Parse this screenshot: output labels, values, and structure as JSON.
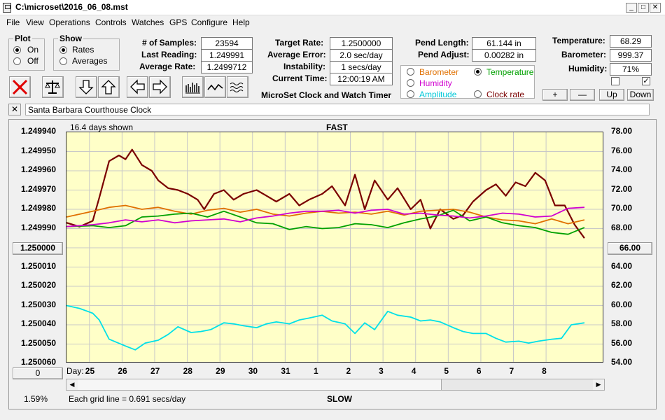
{
  "window": {
    "title": "C:\\microset\\2016_06_08.mst"
  },
  "menu": [
    "File",
    "View",
    "Operations",
    "Controls",
    "Watches",
    "GPS",
    "Configure",
    "Help"
  ],
  "plot_group": {
    "title": "Plot",
    "on": "On",
    "off": "Off",
    "selected": "On"
  },
  "show_group": {
    "title": "Show",
    "rates": "Rates",
    "averages": "Averages",
    "selected": "Rates"
  },
  "stats": {
    "samples_label": "# of Samples:",
    "samples": "23594",
    "last_label": "Last Reading:",
    "last": "1.249991",
    "avg_label": "Average Rate:",
    "avg": "1.2499712",
    "target_label": "Target Rate:",
    "target": "1.2500000",
    "err_label": "Average Error:",
    "err": "2.0 sec/day",
    "inst_label": "Instability:",
    "inst": "1 secs/day",
    "time_label": "Current Time:",
    "time": "12:00:19 AM",
    "pend_len_label": "Pend Length:",
    "pend_len": "61.144 in",
    "pend_adj_label": "Pend Adjust:",
    "pend_adj": "0.00282 in",
    "temp_label": "Temperature:",
    "temp": "68.29",
    "baro_label": "Barometer:",
    "baro": "999.37",
    "hum_label": "Humidity:",
    "hum": "71%",
    "app_name": "MicroSet Clock and Watch Timer"
  },
  "sensor_options": [
    {
      "label": "Barometer",
      "color": "#e07000",
      "selected": false
    },
    {
      "label": "Temperature",
      "color": "#00a000",
      "selected": true
    },
    {
      "label": "Humidity",
      "color": "#d000d0",
      "selected": false
    },
    {
      "label": "Clock rate",
      "color": "#7a0000",
      "selected": false
    },
    {
      "label": "Amplitude",
      "color": "#00c8d8",
      "selected": false
    }
  ],
  "adjust_buttons": {
    "plus": "+",
    "minus": "—",
    "up": "Up",
    "down": "Down"
  },
  "checkboxes": {
    "left": "",
    "right": "✓"
  },
  "watch_name": "Santa Barbara Courthouse Clock",
  "graph": {
    "days_shown": "16.4 days shown",
    "top_label": "FAST",
    "bottom_label": "SLOW",
    "left_value_button": "1.250000",
    "right_value_button": "66.00",
    "zero_button": "0",
    "percent": "1.59%",
    "grid_note": "Each grid line = 0.691 secs/day",
    "day_label": "Day:"
  },
  "chart_data": {
    "type": "line",
    "title": "",
    "y_left": {
      "ticks": [
        "1.249940",
        "1.249950",
        "1.249960",
        "1.249970",
        "1.249980",
        "1.249990",
        "1.250000",
        "1.250010",
        "1.250020",
        "1.250030",
        "1.250040",
        "1.250050",
        "1.250060"
      ],
      "range": [
        1.24994,
        1.25006
      ],
      "inverted": true
    },
    "y_right": {
      "ticks": [
        "78.00",
        "76.00",
        "74.00",
        "72.00",
        "70.00",
        "68.00",
        "66.00",
        "64.00",
        "62.00",
        "60.00",
        "58.00",
        "56.00",
        "54.00"
      ],
      "range": [
        54,
        78
      ]
    },
    "x_days": [
      "25",
      "26",
      "27",
      "28",
      "29",
      "30",
      "31",
      "1",
      "2",
      "3",
      "4",
      "5",
      "6",
      "7",
      "8"
    ],
    "x_range": [
      24.2,
      40.6
    ],
    "grid": true,
    "series": [
      {
        "color": "#7a0000",
        "x": [
          24.2,
          24.6,
          25.0,
          25.2,
          25.5,
          25.8,
          26.0,
          26.2,
          26.5,
          26.8,
          27.0,
          27.3,
          27.6,
          27.9,
          28.2,
          28.4,
          28.7,
          29.0,
          29.3,
          29.6,
          30.0,
          30.3,
          30.6,
          31.0,
          31.3,
          31.6,
          32.0,
          32.3,
          32.7,
          33.0,
          33.3,
          33.6,
          34.0,
          34.3,
          34.7,
          35.0,
          35.3,
          35.6,
          36.0,
          36.3,
          36.6,
          37.0,
          37.3,
          37.6,
          37.9,
          38.2,
          38.5,
          38.8,
          39.1,
          39.4,
          39.7,
          40.0
        ],
        "y": [
          1.249987,
          1.249989,
          1.249986,
          1.249974,
          1.249955,
          1.249952,
          1.249954,
          1.249949,
          1.249957,
          1.24996,
          1.249965,
          1.249969,
          1.24997,
          1.249972,
          1.249975,
          1.24998,
          1.249972,
          1.24997,
          1.249975,
          1.249972,
          1.24997,
          1.249973,
          1.249976,
          1.249972,
          1.249978,
          1.249975,
          1.249972,
          1.249968,
          1.249978,
          1.249962,
          1.24998,
          1.249965,
          1.249975,
          1.249969,
          1.24998,
          1.249975,
          1.24999,
          1.24998,
          1.249985,
          1.249983,
          1.249976,
          1.24997,
          1.249967,
          1.249973,
          1.249966,
          1.249968,
          1.249961,
          1.249965,
          1.249978,
          1.249978,
          1.249988,
          1.249995
        ]
      },
      {
        "color": "#e07000",
        "x": [
          24.2,
          25.0,
          25.5,
          26.0,
          26.5,
          27.0,
          27.5,
          28.0,
          28.5,
          29.0,
          29.5,
          30.0,
          30.5,
          31.0,
          31.5,
          32.0,
          32.5,
          33.0,
          33.5,
          34.0,
          34.5,
          35.0,
          35.5,
          36.0,
          36.5,
          37.0,
          37.5,
          38.0,
          38.5,
          39.0,
          39.5,
          40.0
        ],
        "y": [
          69.2,
          69.8,
          70.2,
          70.4,
          70.0,
          70.2,
          69.8,
          69.5,
          69.9,
          70.1,
          69.7,
          70.0,
          69.5,
          69.3,
          69.6,
          69.8,
          69.6,
          69.7,
          69.5,
          69.8,
          69.4,
          69.8,
          69.9,
          70.0,
          69.7,
          69.2,
          68.9,
          68.8,
          68.5,
          69.0,
          68.5,
          68.9
        ]
      },
      {
        "color": "#00a000",
        "x": [
          24.2,
          25.0,
          25.5,
          26.0,
          26.5,
          27.0,
          27.5,
          28.0,
          28.5,
          29.0,
          29.5,
          30.0,
          30.5,
          31.0,
          31.5,
          32.0,
          32.5,
          33.0,
          33.5,
          34.0,
          34.5,
          35.0,
          35.5,
          36.0,
          36.5,
          37.0,
          37.5,
          38.0,
          38.5,
          39.0,
          39.5,
          40.0
        ],
        "y": [
          68.2,
          68.3,
          68.1,
          68.3,
          69.2,
          69.3,
          69.5,
          69.6,
          69.2,
          69.8,
          69.2,
          68.6,
          68.5,
          67.9,
          68.2,
          68.0,
          68.1,
          68.5,
          68.4,
          68.1,
          68.6,
          69.0,
          69.3,
          69.9,
          68.8,
          69.2,
          68.6,
          68.3,
          68.1,
          67.6,
          67.4,
          68.1
        ]
      },
      {
        "color": "#d000d0",
        "x": [
          24.2,
          25.0,
          25.5,
          26.0,
          26.5,
          27.0,
          27.5,
          28.0,
          28.5,
          29.0,
          29.5,
          30.0,
          30.5,
          31.0,
          31.5,
          32.0,
          32.5,
          33.0,
          33.5,
          34.0,
          34.5,
          35.0,
          35.5,
          36.0,
          36.5,
          37.0,
          37.5,
          38.0,
          38.5,
          39.0,
          39.5,
          40.0
        ],
        "y": [
          68.2,
          68.4,
          68.6,
          68.9,
          68.7,
          68.9,
          68.6,
          68.8,
          68.9,
          69.0,
          68.7,
          69.1,
          69.3,
          69.6,
          69.8,
          69.8,
          69.9,
          69.6,
          69.9,
          70.0,
          69.5,
          69.6,
          69.4,
          69.3,
          69.1,
          69.3,
          69.6,
          69.5,
          69.2,
          69.3,
          70.1,
          70.2
        ]
      },
      {
        "color": "#00e0e8",
        "x": [
          24.2,
          24.6,
          25.0,
          25.2,
          25.5,
          26.0,
          26.3,
          26.6,
          27.0,
          27.3,
          27.6,
          28.0,
          28.3,
          28.6,
          29.0,
          29.3,
          29.6,
          30.0,
          30.3,
          30.6,
          31.0,
          31.3,
          31.6,
          32.0,
          32.3,
          32.7,
          33.0,
          33.3,
          33.6,
          34.0,
          34.3,
          34.7,
          35.0,
          35.3,
          35.6,
          36.0,
          36.3,
          36.6,
          37.0,
          37.3,
          37.6,
          38.0,
          38.3,
          38.6,
          39.0,
          39.3,
          39.6,
          40.0
        ],
        "y": [
          60.0,
          59.7,
          59.2,
          58.5,
          56.5,
          55.8,
          55.4,
          56.1,
          56.4,
          57.0,
          57.8,
          57.2,
          57.3,
          57.5,
          58.2,
          58.1,
          57.9,
          57.7,
          58.1,
          58.3,
          58.1,
          58.5,
          58.7,
          59.0,
          58.4,
          58.1,
          57.1,
          58.2,
          57.5,
          59.4,
          59.0,
          58.8,
          58.4,
          58.5,
          58.3,
          57.7,
          57.3,
          57.1,
          57.1,
          56.6,
          56.2,
          56.3,
          56.1,
          56.3,
          56.5,
          56.6,
          58.0,
          58.2
        ]
      }
    ]
  }
}
